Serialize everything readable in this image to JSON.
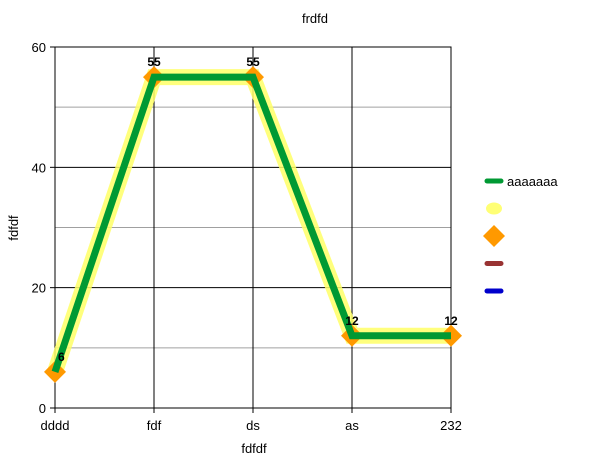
{
  "chart_data": {
    "type": "line",
    "title": "frdfd",
    "xlabel": "fdfdf",
    "ylabel": "fdfdf",
    "categories": [
      "dddd",
      "fdf",
      "ds",
      "as",
      "232"
    ],
    "ylim": [
      0,
      60
    ],
    "yticks": [
      0,
      20,
      40,
      60
    ],
    "grid": true,
    "legend_position": "right",
    "series": [
      {
        "name": "aaaaaaa",
        "values": [
          6,
          55,
          55,
          12,
          12
        ],
        "color": "#009933",
        "glow_color": "#FFFF66",
        "marker": "diamond",
        "marker_color": "#FF9900",
        "data_labels": true
      }
    ],
    "legend_entries": [
      {
        "label": "aaaaaaa",
        "swatch": "line",
        "color": "#009933"
      },
      {
        "label": "",
        "swatch": "glow",
        "color": "#FFFF66"
      },
      {
        "label": "",
        "swatch": "diamond",
        "color": "#FF9900"
      },
      {
        "label": "",
        "swatch": "line",
        "color": "#993333"
      },
      {
        "label": "",
        "swatch": "line",
        "color": "#0000CC"
      }
    ]
  }
}
